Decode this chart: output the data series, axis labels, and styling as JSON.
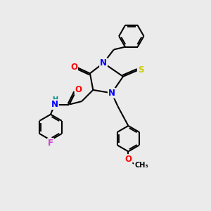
{
  "background_color": "#ebebeb",
  "fig_size": [
    3.0,
    3.0
  ],
  "dpi": 100,
  "atom_colors": {
    "N": "#0000FF",
    "O": "#FF0000",
    "S": "#CCCC00",
    "F": "#CC44CC",
    "H": "#008888",
    "C": "#000000"
  },
  "bond_color": "#000000",
  "bond_width": 1.5,
  "font_size_atoms": 8.5,
  "font_size_small": 7.0
}
